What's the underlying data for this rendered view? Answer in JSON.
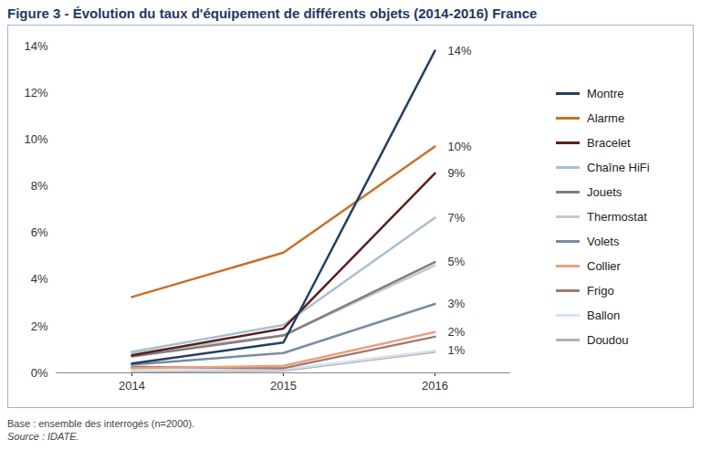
{
  "chart_data": {
    "type": "line",
    "title": "Figure 3 - Évolution du taux d'équipement de différents objets (2014-2016) France",
    "caption": "Base : ensemble des interrogés (n=2000).",
    "source": "Source : IDATE.",
    "categories": [
      "2014",
      "2015",
      "2016"
    ],
    "ylim": [
      0,
      14
    ],
    "yticks": [
      {
        "value": 0,
        "label": "0%"
      },
      {
        "value": 2,
        "label": "2%"
      },
      {
        "value": 4,
        "label": "4%"
      },
      {
        "value": 6,
        "label": "6%"
      },
      {
        "value": 8,
        "label": "8%"
      },
      {
        "value": 10,
        "label": "10%"
      },
      {
        "value": 12,
        "label": "12%"
      },
      {
        "value": 14,
        "label": "14%"
      }
    ],
    "grid": false,
    "legend": "right",
    "data_labels": true,
    "series": [
      {
        "name": "Montre",
        "color": "#243f60",
        "values": [
          0.4,
          1.3,
          13.8
        ],
        "value_labels": [
          null,
          null,
          "14%"
        ]
      },
      {
        "name": "Alarme",
        "color": "#c8702a",
        "values": [
          3.25,
          5.15,
          9.7
        ],
        "value_labels": [
          null,
          null,
          "10%"
        ]
      },
      {
        "name": "Bracelet",
        "color": "#5b1f1f",
        "values": [
          0.75,
          1.9,
          8.55
        ],
        "value_labels": [
          null,
          null,
          "9%"
        ]
      },
      {
        "name": "Chaîne HiFi",
        "color": "#a9bfd2",
        "values": [
          0.9,
          2.05,
          6.65
        ],
        "value_labels": [
          null,
          null,
          "7%"
        ]
      },
      {
        "name": "Jouets",
        "color": "#7f7f7f",
        "values": [
          0.7,
          1.6,
          4.75
        ],
        "value_labels": [
          null,
          null,
          "5%"
        ]
      },
      {
        "name": "Thermostat",
        "color": "#c8c8c8",
        "values": [
          0.85,
          1.6,
          4.6
        ]
      },
      {
        "name": "Volets",
        "color": "#7b8ba1",
        "values": [
          0.35,
          0.85,
          2.95
        ],
        "value_labels": [
          null,
          null,
          "3%"
        ]
      },
      {
        "name": "Collier",
        "color": "#e8a27c",
        "values": [
          0.2,
          0.3,
          1.75
        ],
        "value_labels": [
          null,
          null,
          "2%"
        ]
      },
      {
        "name": "Frigo",
        "color": "#a37872",
        "values": [
          0.25,
          0.2,
          1.55
        ]
      },
      {
        "name": "Ballon",
        "color": "#d6e4f0",
        "values": [
          0.1,
          0.15,
          0.95
        ],
        "value_labels": [
          null,
          null,
          "1%"
        ]
      },
      {
        "name": "Doudou",
        "color": "#b3b3b3",
        "values": [
          0.05,
          0.1,
          0.9
        ]
      }
    ]
  }
}
